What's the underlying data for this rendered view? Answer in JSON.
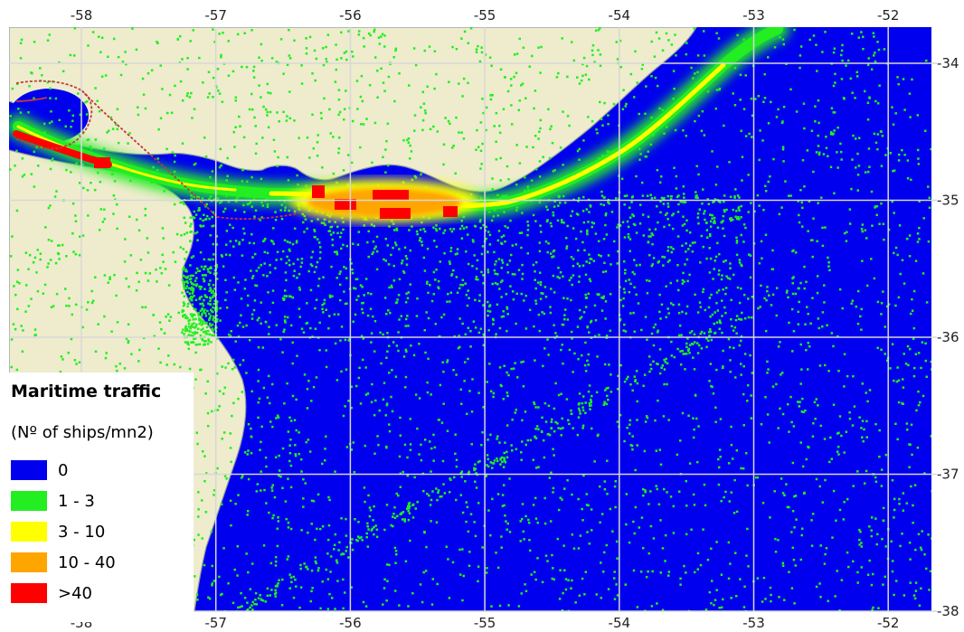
{
  "map": {
    "colors": {
      "sea": "#0000ee",
      "land": "#eeeccc",
      "grid": "#d8d8d8",
      "coast": "#8a9aa2",
      "route": "#c23a3a"
    },
    "longitude_ticks": [
      "-58",
      "-57",
      "-56",
      "-55",
      "-54",
      "-53",
      "-52"
    ],
    "latitude_ticks": [
      "-34",
      "-35",
      "-36",
      "-37",
      "-38"
    ],
    "legend": {
      "title": "Maritime traffic",
      "subtitle": "(Nº of ships/mn2)",
      "items": [
        {
          "label": "0",
          "color": "#0000ee"
        },
        {
          "label": "1 - 3",
          "color": "#22ee22"
        },
        {
          "label": "3 - 10",
          "color": "#ffff00"
        },
        {
          "label": "10 - 40",
          "color": "#ffa500"
        },
        {
          "label": ">40",
          "color": "#ff0000"
        }
      ]
    }
  }
}
